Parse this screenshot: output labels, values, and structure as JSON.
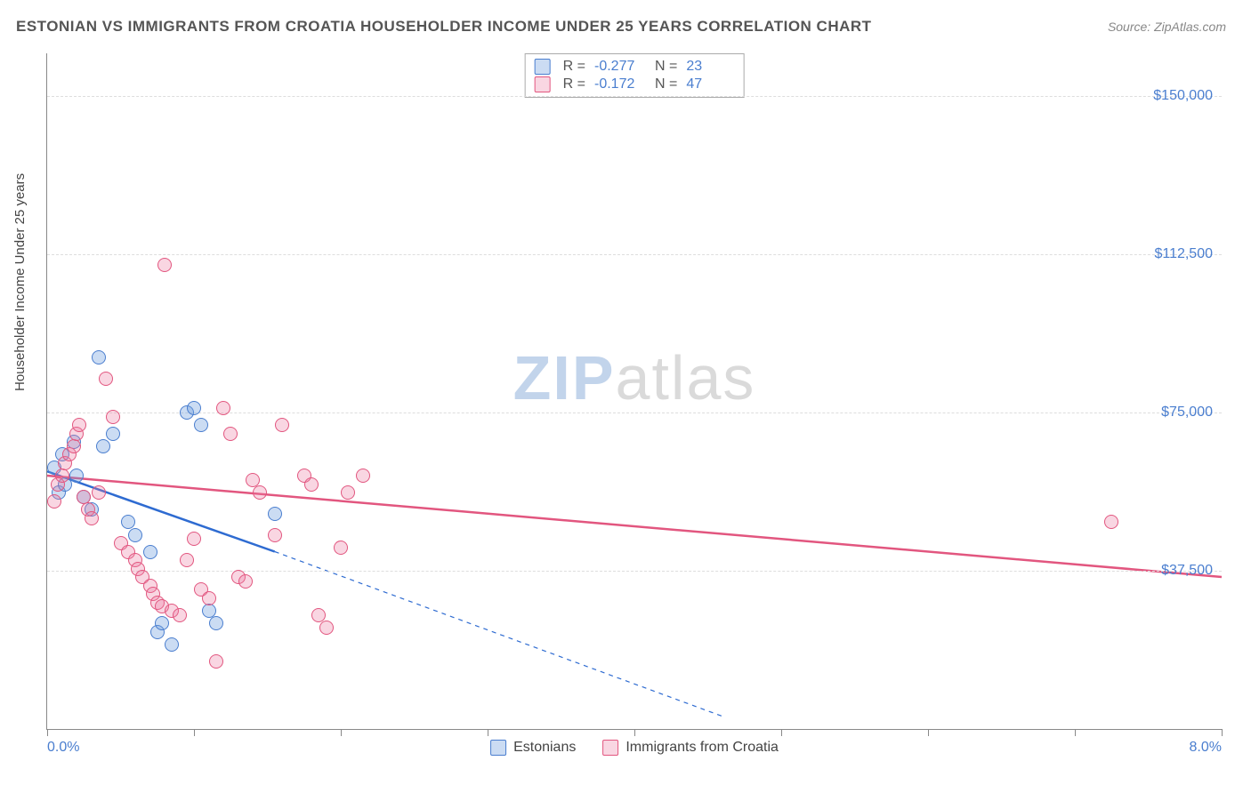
{
  "title": "ESTONIAN VS IMMIGRANTS FROM CROATIA HOUSEHOLDER INCOME UNDER 25 YEARS CORRELATION CHART",
  "source_label": "Source: ZipAtlas.com",
  "yaxis_title": "Householder Income Under 25 years",
  "watermark": {
    "part1": "ZIP",
    "part2": "atlas"
  },
  "chart": {
    "type": "scatter-correlation",
    "background_color": "#ffffff",
    "grid_color": "#dddddd",
    "axis_color": "#888888",
    "tick_label_color": "#4a7ecf",
    "tick_label_fontsize": 16,
    "title_color": "#555555",
    "title_fontsize": 17,
    "x": {
      "min": 0.0,
      "max": 8.0,
      "ticks": [
        0,
        1,
        2,
        3,
        4,
        5,
        6,
        7,
        8
      ],
      "min_label": "0.0%",
      "max_label": "8.0%"
    },
    "y": {
      "min": 0,
      "max": 160000,
      "gridlines": [
        37500,
        75000,
        112500,
        150000
      ],
      "grid_labels": [
        "$37,500",
        "$75,000",
        "$112,500",
        "$150,000"
      ]
    },
    "series": [
      {
        "key": "estonians",
        "legend_label": "Estonians",
        "marker_fill": "rgba(105,155,220,0.35)",
        "marker_stroke": "#4a7ecf",
        "line_color": "#2e6bd1",
        "line_width": 2.5,
        "dash_extrapolate": "5,5",
        "R": "-0.277",
        "N": "23",
        "trend": {
          "x1": 0.0,
          "y1": 61000,
          "x2": 1.55,
          "y2": 42000,
          "dash_to_x": 4.6,
          "dash_to_y": 3000
        },
        "points": [
          [
            0.05,
            62000
          ],
          [
            0.08,
            56000
          ],
          [
            0.1,
            65000
          ],
          [
            0.12,
            58000
          ],
          [
            0.18,
            68000
          ],
          [
            0.2,
            60000
          ],
          [
            0.25,
            55000
          ],
          [
            0.3,
            52000
          ],
          [
            0.35,
            88000
          ],
          [
            0.38,
            67000
          ],
          [
            0.45,
            70000
          ],
          [
            0.55,
            49000
          ],
          [
            0.6,
            46000
          ],
          [
            0.7,
            42000
          ],
          [
            0.75,
            23000
          ],
          [
            0.78,
            25000
          ],
          [
            0.85,
            20000
          ],
          [
            0.95,
            75000
          ],
          [
            1.0,
            76000
          ],
          [
            1.05,
            72000
          ],
          [
            1.1,
            28000
          ],
          [
            1.15,
            25000
          ],
          [
            1.55,
            51000
          ]
        ]
      },
      {
        "key": "croatia",
        "legend_label": "Immigrants from Croatia",
        "marker_fill": "rgba(235,120,160,0.30)",
        "marker_stroke": "#e2567f",
        "line_color": "#e2567f",
        "line_width": 2.5,
        "R": "-0.172",
        "N": "47",
        "trend": {
          "x1": 0.0,
          "y1": 60000,
          "x2": 8.0,
          "y2": 36000
        },
        "points": [
          [
            0.05,
            54000
          ],
          [
            0.07,
            58000
          ],
          [
            0.1,
            60000
          ],
          [
            0.12,
            63000
          ],
          [
            0.15,
            65000
          ],
          [
            0.18,
            67000
          ],
          [
            0.2,
            70000
          ],
          [
            0.22,
            72000
          ],
          [
            0.25,
            55000
          ],
          [
            0.28,
            52000
          ],
          [
            0.3,
            50000
          ],
          [
            0.35,
            56000
          ],
          [
            0.4,
            83000
          ],
          [
            0.45,
            74000
          ],
          [
            0.5,
            44000
          ],
          [
            0.55,
            42000
          ],
          [
            0.6,
            40000
          ],
          [
            0.62,
            38000
          ],
          [
            0.65,
            36000
          ],
          [
            0.7,
            34000
          ],
          [
            0.72,
            32000
          ],
          [
            0.75,
            30000
          ],
          [
            0.78,
            29000
          ],
          [
            0.8,
            110000
          ],
          [
            0.85,
            28000
          ],
          [
            0.9,
            27000
          ],
          [
            0.95,
            40000
          ],
          [
            1.0,
            45000
          ],
          [
            1.05,
            33000
          ],
          [
            1.1,
            31000
          ],
          [
            1.15,
            16000
          ],
          [
            1.2,
            76000
          ],
          [
            1.25,
            70000
          ],
          [
            1.3,
            36000
          ],
          [
            1.35,
            35000
          ],
          [
            1.4,
            59000
          ],
          [
            1.45,
            56000
          ],
          [
            1.55,
            46000
          ],
          [
            1.6,
            72000
          ],
          [
            1.75,
            60000
          ],
          [
            1.8,
            58000
          ],
          [
            1.85,
            27000
          ],
          [
            1.9,
            24000
          ],
          [
            2.0,
            43000
          ],
          [
            2.05,
            56000
          ],
          [
            2.15,
            60000
          ],
          [
            7.25,
            49000
          ]
        ]
      }
    ],
    "stats_box": {
      "R_label": "R =",
      "N_label": "N ="
    }
  }
}
